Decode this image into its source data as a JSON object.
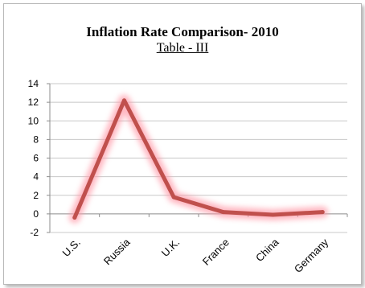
{
  "chart_data": {
    "type": "line",
    "title": "Inflation Rate Comparison- 2010",
    "subtitle": "Table - III",
    "categories": [
      "U.S.",
      "Russia",
      "U.K.",
      "France",
      "China",
      "Germany"
    ],
    "series": [
      {
        "values": [
          -0.4,
          12.2,
          1.8,
          0.2,
          -0.1,
          0.2
        ]
      }
    ],
    "ylim": [
      -2,
      14
    ],
    "yticks": [
      "14",
      "12",
      "10",
      "8",
      "6",
      "4",
      "2",
      "0",
      "-2"
    ],
    "grid": true,
    "legend": "none",
    "colors": {
      "line": "#c0504d",
      "glow": "#ff9aa8",
      "grid": "#c8c8c8"
    }
  }
}
